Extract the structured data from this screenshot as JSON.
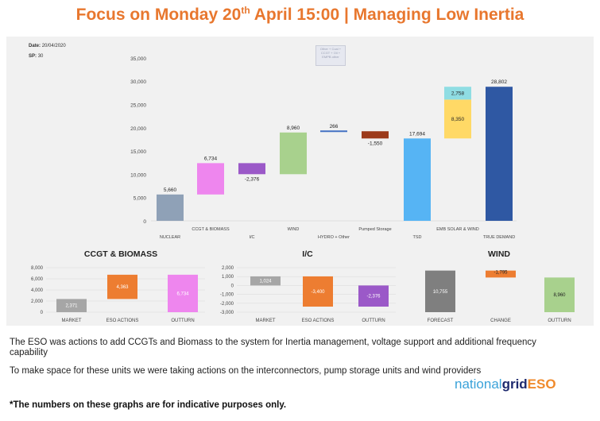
{
  "header": {
    "title_pre": "Focus on Monday 20",
    "title_sup": "th",
    "title_post": " April 15:00 | Managing Low Inertia"
  },
  "meta": {
    "date_label": "Date:",
    "date_value": "20/04/2020",
    "sp_label": "SP:",
    "sp_value": "30",
    "tooltip_line1": "Other + Coal +",
    "tooltip_line2": "CCGT + Oil +",
    "tooltip_line3": "EMPB other"
  },
  "colors": {
    "nuclear": "#8FA1B7",
    "ccgt": "#EE86EE",
    "ic": "#9B59C8",
    "wind": "#A8D18D",
    "hydro": "#4472C4",
    "pumped": "#9C3A1B",
    "tsd": "#56B4F4",
    "solar": "#FFD966",
    "emb_wind": "#8FDDE3",
    "true_demand": "#2F58A3",
    "market": "#A6A6A6",
    "eso": "#ED7D31",
    "outturn_ccgt": "#EE86EE",
    "outturn_ic": "#9B59C8",
    "forecast": "#7F7F7F",
    "outturn_wind": "#A8D18D",
    "title": "#E8772E"
  },
  "chart_data": [
    {
      "type": "bar",
      "subtype": "waterfall",
      "categories": [
        "NUCLEAR",
        "CCGT & BIOMASS",
        "I/C",
        "WIND",
        "HYDRO + Other",
        "Pumped Storage",
        "TSD",
        "EMB SOLAR & WIND",
        "TRUE DEMAND"
      ],
      "steps": [
        {
          "label": "NUCLEAR",
          "value": 5660,
          "from": 0,
          "to": 5660,
          "value_label": "5,660"
        },
        {
          "label": "CCGT & BIOMASS",
          "value": 6734,
          "from": 5660,
          "to": 12394,
          "value_label": "6,734"
        },
        {
          "label": "I/C",
          "value": -2376,
          "from": 12394,
          "to": 10018,
          "value_label": "-2,376"
        },
        {
          "label": "WIND",
          "value": 8960,
          "from": 10018,
          "to": 18978,
          "value_label": "8,960"
        },
        {
          "label": "HYDRO + Other",
          "value": 266,
          "from": 18978,
          "to": 19244,
          "value_label": "266"
        },
        {
          "label": "Pumped Storage",
          "value": -1550,
          "from": 19244,
          "to": 17694,
          "value_label": "-1,550"
        },
        {
          "label": "TSD",
          "value": 17694,
          "from": 0,
          "to": 17694,
          "value_label": "17,694"
        },
        {
          "label": "EMB SOLAR & WIND",
          "stack": [
            {
              "part": "solar",
              "value": 8350,
              "value_label": "8,350"
            },
            {
              "part": "wind",
              "value": 2758,
              "value_label": "2,758"
            }
          ],
          "from": 17694,
          "to": 28802
        },
        {
          "label": "TRUE DEMAND",
          "value": 28802,
          "from": 0,
          "to": 28802,
          "value_label": "28,802"
        }
      ],
      "yticks": [
        "0",
        "5,000",
        "10,000",
        "15,000",
        "20,000",
        "25,000",
        "30,000",
        "35,000"
      ],
      "ylim": [
        0,
        35000
      ]
    },
    {
      "type": "bar",
      "subtype": "waterfall",
      "title": "CCGT & BIOMASS",
      "categories": [
        "MARKET",
        "ESO ACTIONS",
        "OUTTURN"
      ],
      "steps": [
        {
          "label": "MARKET",
          "from": 0,
          "to": 2371,
          "value_label": "2,371"
        },
        {
          "label": "ESO ACTIONS",
          "from": 2371,
          "to": 6734,
          "value_label": "4,363"
        },
        {
          "label": "OUTTURN",
          "from": 0,
          "to": 6734,
          "value_label": "6,734"
        }
      ],
      "yticks": [
        "0",
        "2,000",
        "4,000",
        "6,000",
        "8,000"
      ],
      "ylim": [
        0,
        8000
      ]
    },
    {
      "type": "bar",
      "subtype": "waterfall",
      "title": "I/C",
      "categories": [
        "MARKET",
        "ESO ACTIONS",
        "OUTTURN"
      ],
      "steps": [
        {
          "label": "MARKET",
          "from": 0,
          "to": 1024,
          "value_label": "1,024"
        },
        {
          "label": "ESO ACTIONS",
          "from": 1024,
          "to": -2376,
          "value_label": "-3,400"
        },
        {
          "label": "OUTTURN",
          "from": 0,
          "to": -2376,
          "value_label": "-2,376"
        }
      ],
      "yticks": [
        "-3,000",
        "-2,000",
        "-1,000",
        "0",
        "1,000",
        "2,000"
      ],
      "ylim": [
        -3000,
        2000
      ]
    },
    {
      "type": "bar",
      "subtype": "waterfall",
      "title": "WIND",
      "categories": [
        "FORECAST",
        "CHANGE",
        "OUTTURN"
      ],
      "steps": [
        {
          "label": "FORECAST",
          "from": 0,
          "to": 10755,
          "value_label": "10,755"
        },
        {
          "label": "CHANGE",
          "from": 10755,
          "to": 8960,
          "value_label": "-1,795"
        },
        {
          "label": "OUTTURN",
          "from": 0,
          "to": 8960,
          "value_label": "8,960"
        }
      ],
      "ylim": [
        0,
        11500
      ]
    }
  ],
  "body": {
    "para1": "The ESO was actions to add CCGTs and Biomass to the system for Inertia management, voltage support and additional frequency capability",
    "para2": "To make space for these units we were taking actions on the interconnectors, pump storage units and wind providers",
    "note": "*The numbers on these graphs are for indicative purposes only."
  },
  "logo": {
    "part1": "national",
    "part2": "grid",
    "part3": "ESO"
  }
}
